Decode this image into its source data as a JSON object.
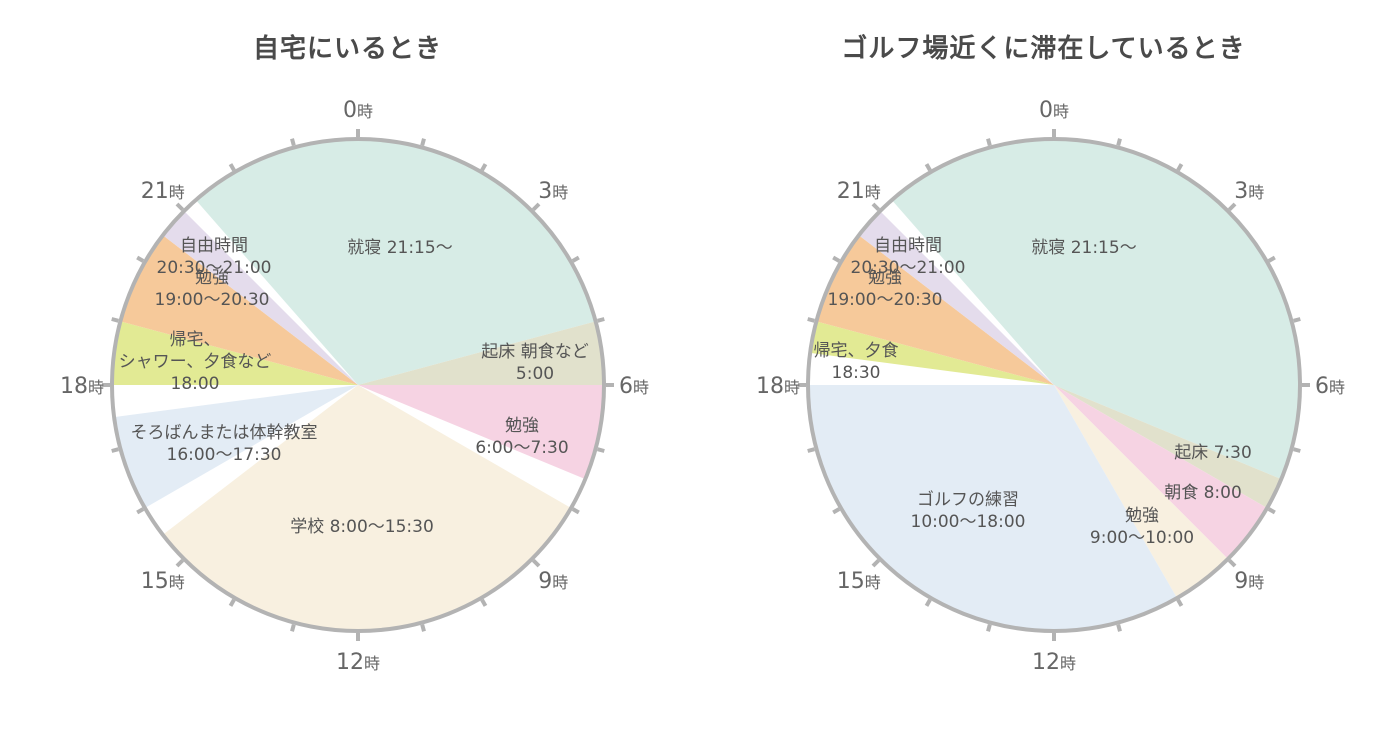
{
  "chart_data": [
    {
      "type": "pie",
      "title": "自宅にいるとき",
      "hour_labels": [
        {
          "hour": 0,
          "num": "0",
          "suffix": "時"
        },
        {
          "hour": 3,
          "num": "3",
          "suffix": "時"
        },
        {
          "hour": 6,
          "num": "6",
          "suffix": "時"
        },
        {
          "hour": 9,
          "num": "9",
          "suffix": "時"
        },
        {
          "hour": 12,
          "num": "12",
          "suffix": "時"
        },
        {
          "hour": 15,
          "num": "15",
          "suffix": "時"
        },
        {
          "hour": 18,
          "num": "18",
          "suffix": "時"
        },
        {
          "hour": 21,
          "num": "21",
          "suffix": "時"
        }
      ],
      "segments": [
        {
          "start": 21.25,
          "end": 29.0,
          "color": "#d7ece6",
          "label": [
            "就寝 21:15〜"
          ]
        },
        {
          "start": 5.0,
          "end": 6.0,
          "color": "#e1e1cc",
          "label": [
            "起床 朝食など",
            "5:00"
          ]
        },
        {
          "start": 6.0,
          "end": 7.5,
          "color": "#f6d3e3",
          "label": [
            "勉強",
            "6:00〜7:30"
          ]
        },
        {
          "start": 8.0,
          "end": 15.5,
          "color": "#f8f0e0",
          "label": [
            "学校 8:00〜15:30"
          ]
        },
        {
          "start": 16.0,
          "end": 17.5,
          "color": "#e3ecf5",
          "label": [
            "そろばんまたは体幹教室",
            "16:00〜17:30"
          ]
        },
        {
          "start": 18.0,
          "end": 19.0,
          "color": "#e2ea94",
          "label": [
            "帰宅、",
            "シャワー、夕食など",
            "18:00"
          ]
        },
        {
          "start": 19.0,
          "end": 20.5,
          "color": "#f6c99a",
          "label": [
            "勉強",
            "19:00〜20:30"
          ]
        },
        {
          "start": 20.5,
          "end": 21.0,
          "color": "#e4dcec",
          "label": [
            "自由時間",
            "20:30〜21:00"
          ]
        }
      ]
    },
    {
      "type": "pie",
      "title": "ゴルフ場近くに滞在しているとき",
      "hour_labels": [
        {
          "hour": 0,
          "num": "0",
          "suffix": "時"
        },
        {
          "hour": 3,
          "num": "3",
          "suffix": "時"
        },
        {
          "hour": 6,
          "num": "6",
          "suffix": "時"
        },
        {
          "hour": 9,
          "num": "9",
          "suffix": "時"
        },
        {
          "hour": 12,
          "num": "12",
          "suffix": "時"
        },
        {
          "hour": 15,
          "num": "15",
          "suffix": "時"
        },
        {
          "hour": 18,
          "num": "18",
          "suffix": "時"
        },
        {
          "hour": 21,
          "num": "21",
          "suffix": "時"
        }
      ],
      "segments": [
        {
          "start": 21.25,
          "end": 31.5,
          "color": "#d7ece6",
          "label": [
            "就寝 21:15〜"
          ]
        },
        {
          "start": 7.5,
          "end": 8.0,
          "color": "#e1e1cc",
          "label": [
            "起床 7:30"
          ]
        },
        {
          "start": 8.0,
          "end": 9.0,
          "color": "#f6d3e3",
          "label": [
            "朝食 8:00"
          ]
        },
        {
          "start": 9.0,
          "end": 10.0,
          "color": "#f8f0e0",
          "label": [
            "勉強",
            "9:00〜10:00"
          ]
        },
        {
          "start": 10.0,
          "end": 18.0,
          "color": "#e3ecf5",
          "label": [
            "ゴルフの練習",
            "10:00〜18:00"
          ]
        },
        {
          "start": 18.5,
          "end": 19.0,
          "color": "#e2ea94",
          "label": [
            "帰宅、夕食",
            "18:30"
          ]
        },
        {
          "start": 19.0,
          "end": 20.5,
          "color": "#f6c99a",
          "label": [
            "勉強",
            "19:00〜20:30"
          ]
        },
        {
          "start": 20.5,
          "end": 21.0,
          "color": "#e4dcec",
          "label": [
            "自由時間",
            "20:30〜21:00"
          ]
        }
      ]
    }
  ]
}
